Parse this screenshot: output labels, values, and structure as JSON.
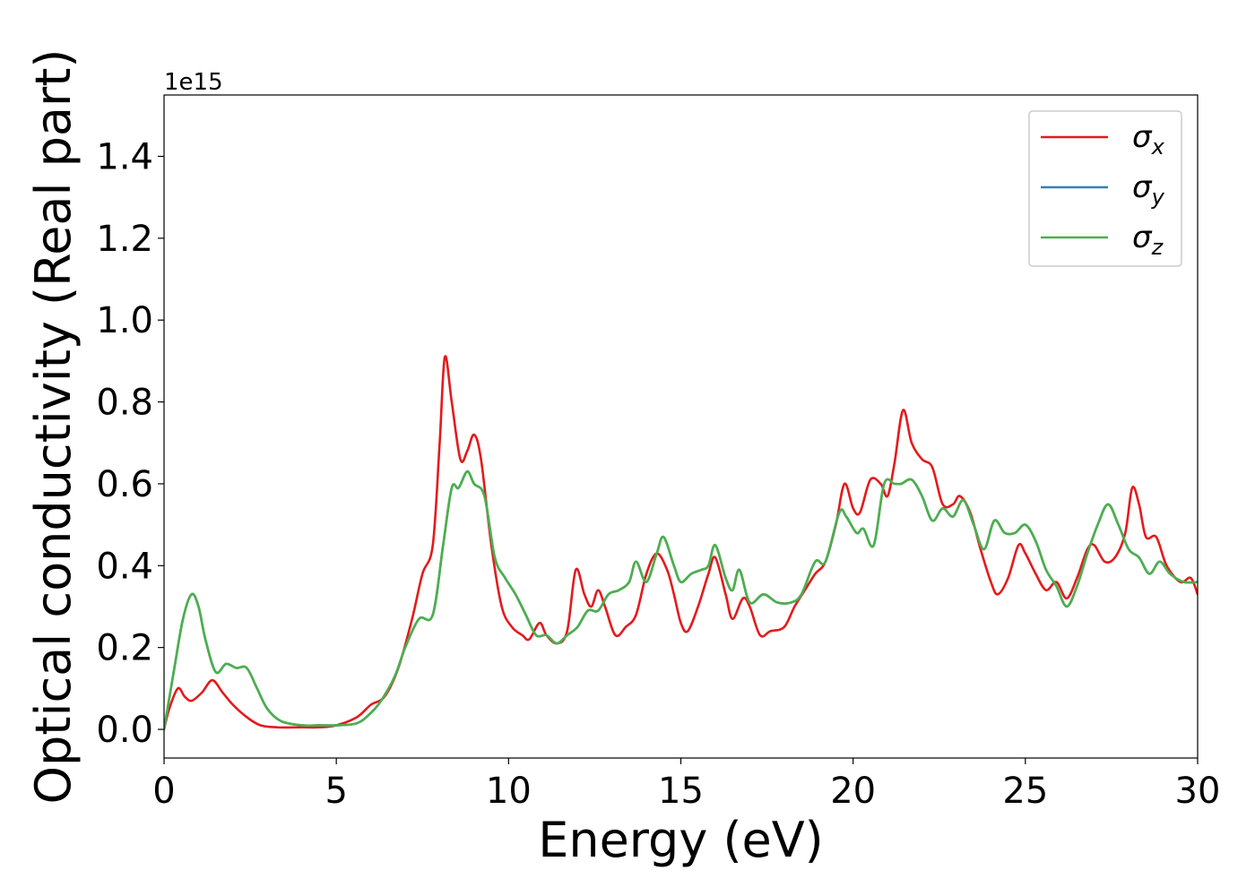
{
  "chart_data": {
    "type": "line",
    "xlabel": "Energy (eV)",
    "ylabel": "Optical conductivity (Real part)",
    "y_offset_text": "1e15",
    "xlim": [
      0,
      30
    ],
    "ylim": [
      -0.07,
      1.55
    ],
    "x_ticks": [
      0,
      5,
      10,
      15,
      20,
      25,
      30
    ],
    "x_tick_labels": [
      "0",
      "5",
      "10",
      "15",
      "20",
      "25",
      "30"
    ],
    "y_ticks": [
      0.0,
      0.2,
      0.4,
      0.6,
      0.8,
      1.0,
      1.2,
      1.4
    ],
    "y_tick_labels": [
      "0.0",
      "0.2",
      "0.4",
      "0.6",
      "0.8",
      "1.0",
      "1.2",
      "1.4"
    ],
    "grid": false,
    "legend_position": "top-right",
    "legend": [
      {
        "base": "σ",
        "sub": "x",
        "color": "#e41a1c"
      },
      {
        "base": "σ",
        "sub": "y",
        "color": "#377eb8"
      },
      {
        "base": "σ",
        "sub": "z",
        "color": "#4daf4a"
      }
    ],
    "series": [
      {
        "name": "σx",
        "color": "#e41a1c",
        "points": [
          [
            0,
            0.0
          ],
          [
            0.15,
            0.05
          ],
          [
            0.4,
            0.1
          ],
          [
            0.6,
            0.08
          ],
          [
            0.8,
            0.07
          ],
          [
            1.1,
            0.09
          ],
          [
            1.4,
            0.12
          ],
          [
            1.7,
            0.09
          ],
          [
            2.0,
            0.06
          ],
          [
            2.4,
            0.03
          ],
          [
            2.8,
            0.01
          ],
          [
            3.3,
            0.005
          ],
          [
            4.0,
            0.005
          ],
          [
            4.5,
            0.005
          ],
          [
            5.0,
            0.01
          ],
          [
            5.6,
            0.03
          ],
          [
            6.0,
            0.06
          ],
          [
            6.4,
            0.08
          ],
          [
            6.8,
            0.15
          ],
          [
            7.2,
            0.27
          ],
          [
            7.5,
            0.38
          ],
          [
            7.8,
            0.45
          ],
          [
            8.0,
            0.7
          ],
          [
            8.15,
            0.91
          ],
          [
            8.35,
            0.8
          ],
          [
            8.6,
            0.66
          ],
          [
            8.8,
            0.68
          ],
          [
            9.0,
            0.72
          ],
          [
            9.2,
            0.66
          ],
          [
            9.5,
            0.45
          ],
          [
            9.8,
            0.3
          ],
          [
            10.1,
            0.25
          ],
          [
            10.4,
            0.23
          ],
          [
            10.6,
            0.22
          ],
          [
            10.9,
            0.26
          ],
          [
            11.1,
            0.23
          ],
          [
            11.4,
            0.21
          ],
          [
            11.7,
            0.24
          ],
          [
            11.95,
            0.39
          ],
          [
            12.2,
            0.33
          ],
          [
            12.4,
            0.3
          ],
          [
            12.6,
            0.34
          ],
          [
            12.8,
            0.3
          ],
          [
            13.1,
            0.23
          ],
          [
            13.4,
            0.25
          ],
          [
            13.7,
            0.28
          ],
          [
            14.0,
            0.38
          ],
          [
            14.3,
            0.43
          ],
          [
            14.6,
            0.39
          ],
          [
            14.8,
            0.33
          ],
          [
            15.0,
            0.26
          ],
          [
            15.2,
            0.24
          ],
          [
            15.5,
            0.3
          ],
          [
            15.8,
            0.38
          ],
          [
            16.0,
            0.42
          ],
          [
            16.3,
            0.33
          ],
          [
            16.5,
            0.27
          ],
          [
            16.8,
            0.32
          ],
          [
            17.0,
            0.3
          ],
          [
            17.3,
            0.23
          ],
          [
            17.6,
            0.24
          ],
          [
            18.0,
            0.25
          ],
          [
            18.3,
            0.3
          ],
          [
            18.6,
            0.34
          ],
          [
            18.9,
            0.38
          ],
          [
            19.2,
            0.41
          ],
          [
            19.5,
            0.5
          ],
          [
            19.75,
            0.6
          ],
          [
            20.0,
            0.54
          ],
          [
            20.2,
            0.53
          ],
          [
            20.5,
            0.61
          ],
          [
            20.8,
            0.6
          ],
          [
            21.0,
            0.57
          ],
          [
            21.2,
            0.65
          ],
          [
            21.45,
            0.78
          ],
          [
            21.7,
            0.7
          ],
          [
            22.0,
            0.66
          ],
          [
            22.3,
            0.64
          ],
          [
            22.6,
            0.55
          ],
          [
            22.9,
            0.55
          ],
          [
            23.1,
            0.57
          ],
          [
            23.4,
            0.53
          ],
          [
            23.7,
            0.44
          ],
          [
            24.0,
            0.36
          ],
          [
            24.2,
            0.33
          ],
          [
            24.5,
            0.37
          ],
          [
            24.8,
            0.45
          ],
          [
            25.0,
            0.43
          ],
          [
            25.3,
            0.38
          ],
          [
            25.6,
            0.34
          ],
          [
            25.9,
            0.36
          ],
          [
            26.2,
            0.32
          ],
          [
            26.5,
            0.37
          ],
          [
            26.8,
            0.44
          ],
          [
            27.0,
            0.45
          ],
          [
            27.3,
            0.41
          ],
          [
            27.6,
            0.42
          ],
          [
            27.9,
            0.48
          ],
          [
            28.1,
            0.59
          ],
          [
            28.3,
            0.55
          ],
          [
            28.5,
            0.47
          ],
          [
            28.8,
            0.47
          ],
          [
            29.1,
            0.4
          ],
          [
            29.5,
            0.36
          ],
          [
            29.8,
            0.37
          ],
          [
            30.0,
            0.33
          ]
        ]
      },
      {
        "name": "σy",
        "color": "#377eb8",
        "points": [
          [
            0,
            0.0
          ],
          [
            0.3,
            0.15
          ],
          [
            0.55,
            0.27
          ],
          [
            0.8,
            0.33
          ],
          [
            1.0,
            0.3
          ],
          [
            1.2,
            0.22
          ],
          [
            1.5,
            0.14
          ],
          [
            1.8,
            0.16
          ],
          [
            2.1,
            0.15
          ],
          [
            2.4,
            0.15
          ],
          [
            2.7,
            0.1
          ],
          [
            3.0,
            0.05
          ],
          [
            3.4,
            0.02
          ],
          [
            4.0,
            0.01
          ],
          [
            4.5,
            0.01
          ],
          [
            5.0,
            0.01
          ],
          [
            5.6,
            0.015
          ],
          [
            6.0,
            0.04
          ],
          [
            6.3,
            0.07
          ],
          [
            6.7,
            0.13
          ],
          [
            7.0,
            0.2
          ],
          [
            7.4,
            0.27
          ],
          [
            7.8,
            0.28
          ],
          [
            8.1,
            0.45
          ],
          [
            8.35,
            0.59
          ],
          [
            8.55,
            0.59
          ],
          [
            8.8,
            0.63
          ],
          [
            9.0,
            0.6
          ],
          [
            9.3,
            0.57
          ],
          [
            9.6,
            0.42
          ],
          [
            9.9,
            0.37
          ],
          [
            10.2,
            0.33
          ],
          [
            10.5,
            0.28
          ],
          [
            10.8,
            0.23
          ],
          [
            11.1,
            0.23
          ],
          [
            11.4,
            0.21
          ],
          [
            11.7,
            0.23
          ],
          [
            12.0,
            0.25
          ],
          [
            12.3,
            0.29
          ],
          [
            12.6,
            0.29
          ],
          [
            12.9,
            0.33
          ],
          [
            13.2,
            0.34
          ],
          [
            13.5,
            0.36
          ],
          [
            13.7,
            0.41
          ],
          [
            14.0,
            0.36
          ],
          [
            14.3,
            0.43
          ],
          [
            14.5,
            0.47
          ],
          [
            14.8,
            0.4
          ],
          [
            15.0,
            0.36
          ],
          [
            15.3,
            0.38
          ],
          [
            15.6,
            0.39
          ],
          [
            15.8,
            0.4
          ],
          [
            16.0,
            0.45
          ],
          [
            16.3,
            0.37
          ],
          [
            16.5,
            0.34
          ],
          [
            16.7,
            0.39
          ],
          [
            17.0,
            0.31
          ],
          [
            17.4,
            0.33
          ],
          [
            17.8,
            0.31
          ],
          [
            18.2,
            0.31
          ],
          [
            18.5,
            0.33
          ],
          [
            18.9,
            0.41
          ],
          [
            19.2,
            0.41
          ],
          [
            19.6,
            0.53
          ],
          [
            19.8,
            0.52
          ],
          [
            20.1,
            0.48
          ],
          [
            20.3,
            0.49
          ],
          [
            20.6,
            0.45
          ],
          [
            20.9,
            0.6
          ],
          [
            21.2,
            0.6
          ],
          [
            21.4,
            0.6
          ],
          [
            21.7,
            0.61
          ],
          [
            22.0,
            0.57
          ],
          [
            22.3,
            0.51
          ],
          [
            22.6,
            0.54
          ],
          [
            22.9,
            0.52
          ],
          [
            23.2,
            0.56
          ],
          [
            23.5,
            0.5
          ],
          [
            23.8,
            0.44
          ],
          [
            24.1,
            0.51
          ],
          [
            24.4,
            0.48
          ],
          [
            24.7,
            0.48
          ],
          [
            25.0,
            0.5
          ],
          [
            25.3,
            0.46
          ],
          [
            25.6,
            0.39
          ],
          [
            25.9,
            0.35
          ],
          [
            26.2,
            0.3
          ],
          [
            26.5,
            0.35
          ],
          [
            26.8,
            0.43
          ],
          [
            27.1,
            0.5
          ],
          [
            27.4,
            0.55
          ],
          [
            27.7,
            0.5
          ],
          [
            28.0,
            0.44
          ],
          [
            28.3,
            0.42
          ],
          [
            28.6,
            0.38
          ],
          [
            28.9,
            0.41
          ],
          [
            29.2,
            0.38
          ],
          [
            29.6,
            0.36
          ],
          [
            30.0,
            0.36
          ]
        ]
      },
      {
        "name": "σz",
        "color": "#4daf4a",
        "points": [
          [
            0,
            0.0
          ],
          [
            0.3,
            0.15
          ],
          [
            0.55,
            0.27
          ],
          [
            0.8,
            0.33
          ],
          [
            1.0,
            0.3
          ],
          [
            1.2,
            0.22
          ],
          [
            1.5,
            0.14
          ],
          [
            1.8,
            0.16
          ],
          [
            2.1,
            0.15
          ],
          [
            2.4,
            0.15
          ],
          [
            2.7,
            0.1
          ],
          [
            3.0,
            0.05
          ],
          [
            3.4,
            0.02
          ],
          [
            4.0,
            0.01
          ],
          [
            4.5,
            0.01
          ],
          [
            5.0,
            0.01
          ],
          [
            5.6,
            0.015
          ],
          [
            6.0,
            0.04
          ],
          [
            6.3,
            0.07
          ],
          [
            6.7,
            0.13
          ],
          [
            7.0,
            0.2
          ],
          [
            7.4,
            0.27
          ],
          [
            7.8,
            0.28
          ],
          [
            8.1,
            0.45
          ],
          [
            8.35,
            0.59
          ],
          [
            8.55,
            0.59
          ],
          [
            8.8,
            0.63
          ],
          [
            9.0,
            0.6
          ],
          [
            9.3,
            0.57
          ],
          [
            9.6,
            0.42
          ],
          [
            9.9,
            0.37
          ],
          [
            10.2,
            0.33
          ],
          [
            10.5,
            0.28
          ],
          [
            10.8,
            0.23
          ],
          [
            11.1,
            0.23
          ],
          [
            11.4,
            0.21
          ],
          [
            11.7,
            0.23
          ],
          [
            12.0,
            0.25
          ],
          [
            12.3,
            0.29
          ],
          [
            12.6,
            0.29
          ],
          [
            12.9,
            0.33
          ],
          [
            13.2,
            0.34
          ],
          [
            13.5,
            0.36
          ],
          [
            13.7,
            0.41
          ],
          [
            14.0,
            0.36
          ],
          [
            14.3,
            0.43
          ],
          [
            14.5,
            0.47
          ],
          [
            14.8,
            0.4
          ],
          [
            15.0,
            0.36
          ],
          [
            15.3,
            0.38
          ],
          [
            15.6,
            0.39
          ],
          [
            15.8,
            0.4
          ],
          [
            16.0,
            0.45
          ],
          [
            16.3,
            0.37
          ],
          [
            16.5,
            0.34
          ],
          [
            16.7,
            0.39
          ],
          [
            17.0,
            0.31
          ],
          [
            17.4,
            0.33
          ],
          [
            17.8,
            0.31
          ],
          [
            18.2,
            0.31
          ],
          [
            18.5,
            0.33
          ],
          [
            18.9,
            0.41
          ],
          [
            19.2,
            0.41
          ],
          [
            19.6,
            0.53
          ],
          [
            19.8,
            0.52
          ],
          [
            20.1,
            0.48
          ],
          [
            20.3,
            0.49
          ],
          [
            20.6,
            0.45
          ],
          [
            20.9,
            0.6
          ],
          [
            21.2,
            0.6
          ],
          [
            21.4,
            0.6
          ],
          [
            21.7,
            0.61
          ],
          [
            22.0,
            0.57
          ],
          [
            22.3,
            0.51
          ],
          [
            22.6,
            0.54
          ],
          [
            22.9,
            0.52
          ],
          [
            23.2,
            0.56
          ],
          [
            23.5,
            0.5
          ],
          [
            23.8,
            0.44
          ],
          [
            24.1,
            0.51
          ],
          [
            24.4,
            0.48
          ],
          [
            24.7,
            0.48
          ],
          [
            25.0,
            0.5
          ],
          [
            25.3,
            0.46
          ],
          [
            25.6,
            0.39
          ],
          [
            25.9,
            0.35
          ],
          [
            26.2,
            0.3
          ],
          [
            26.5,
            0.35
          ],
          [
            26.8,
            0.43
          ],
          [
            27.1,
            0.5
          ],
          [
            27.4,
            0.55
          ],
          [
            27.7,
            0.5
          ],
          [
            28.0,
            0.44
          ],
          [
            28.3,
            0.42
          ],
          [
            28.6,
            0.38
          ],
          [
            28.9,
            0.41
          ],
          [
            29.2,
            0.38
          ],
          [
            29.6,
            0.36
          ],
          [
            30.0,
            0.36
          ]
        ]
      }
    ]
  }
}
